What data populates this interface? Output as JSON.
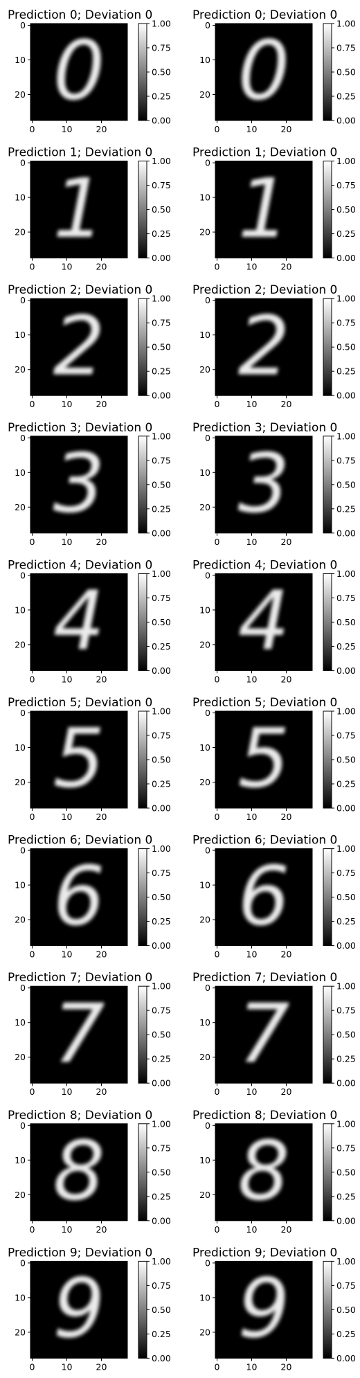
{
  "chart_data": {
    "type": "heatmap",
    "layout": {
      "rows": 10,
      "cols": 2
    },
    "colormap": "gray",
    "image_size": [
      28,
      28
    ],
    "xticks": [
      0,
      10,
      20
    ],
    "yticks": [
      0,
      10,
      20
    ],
    "colorbar": {
      "ticks": [
        "0.00",
        "0.25",
        "0.50",
        "0.75",
        "1.00"
      ],
      "range": [
        0.0,
        1.0
      ]
    },
    "panels": [
      {
        "title": "Prediction 0; Deviation 0",
        "digit": "0"
      },
      {
        "title": "Prediction 0; Deviation 0",
        "digit": "0"
      },
      {
        "title": "Prediction 1; Deviation 0",
        "digit": "1"
      },
      {
        "title": "Prediction 1; Deviation 0",
        "digit": "1"
      },
      {
        "title": "Prediction 2; Deviation 0",
        "digit": "2"
      },
      {
        "title": "Prediction 2; Deviation 0",
        "digit": "2"
      },
      {
        "title": "Prediction 3; Deviation 0",
        "digit": "3"
      },
      {
        "title": "Prediction 3; Deviation 0",
        "digit": "3"
      },
      {
        "title": "Prediction 4; Deviation 0",
        "digit": "4"
      },
      {
        "title": "Prediction 4; Deviation 0",
        "digit": "4"
      },
      {
        "title": "Prediction 5; Deviation 0",
        "digit": "5"
      },
      {
        "title": "Prediction 5; Deviation 0",
        "digit": "5"
      },
      {
        "title": "Prediction 6; Deviation 0",
        "digit": "6"
      },
      {
        "title": "Prediction 6; Deviation 0",
        "digit": "6"
      },
      {
        "title": "Prediction 7; Deviation 0",
        "digit": "7"
      },
      {
        "title": "Prediction 7; Deviation 0",
        "digit": "7"
      },
      {
        "title": "Prediction 8; Deviation 0",
        "digit": "8"
      },
      {
        "title": "Prediction 8; Deviation 0",
        "digit": "8"
      },
      {
        "title": "Prediction 9; Deviation 0",
        "digit": "9"
      },
      {
        "title": "Prediction 9; Deviation 0",
        "digit": "9"
      }
    ]
  }
}
